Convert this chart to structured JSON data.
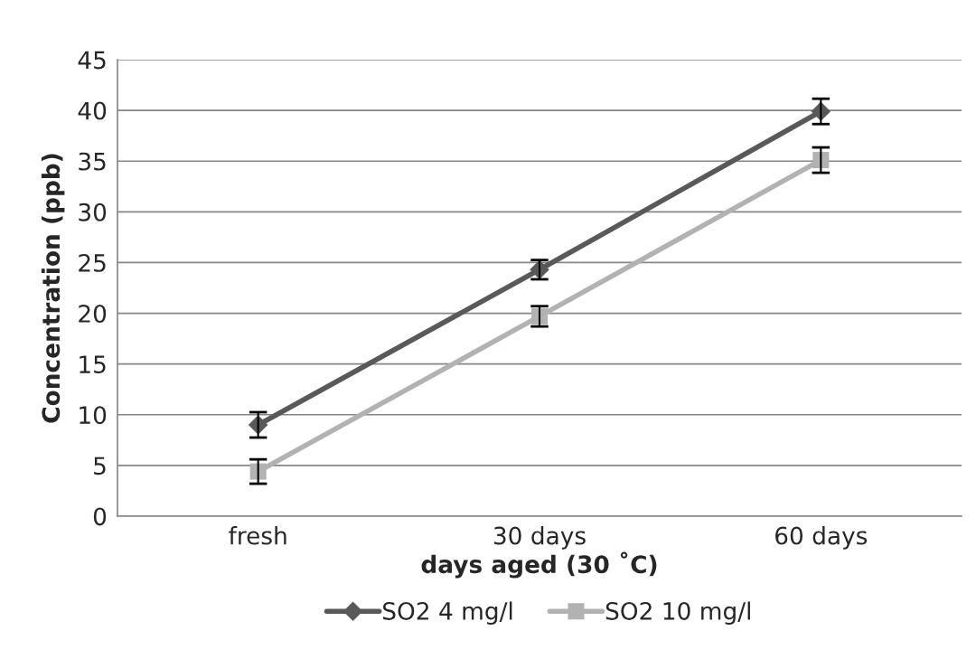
{
  "chart_data": {
    "type": "line",
    "xlabel": "days aged (30 ˚C)",
    "ylabel": "Concentration (ppb)",
    "categories": [
      "fresh",
      "30 days",
      "60 days"
    ],
    "series": [
      {
        "name": "SO2 4 mg/l",
        "color": "#595959",
        "marker": "diamond",
        "values": [
          9.0,
          24.3,
          39.9
        ],
        "errors": [
          1.25,
          0.95,
          1.25
        ]
      },
      {
        "name": "SO2 10 mg/l",
        "color": "#b2b2b2",
        "marker": "square",
        "values": [
          4.4,
          19.7,
          35.1
        ],
        "errors": [
          1.2,
          1.0,
          1.25
        ]
      }
    ],
    "ylim": [
      0,
      45
    ],
    "yticks": [
      0,
      5,
      10,
      15,
      20,
      25,
      30,
      35,
      40,
      45
    ],
    "grid": "y",
    "legend": "bottom",
    "line_style": "solid"
  }
}
